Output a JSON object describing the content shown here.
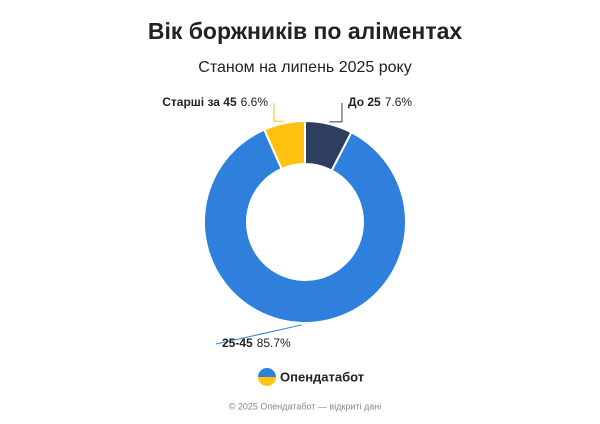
{
  "chart_data": {
    "type": "donut",
    "title": "Вік боржників по аліментах",
    "subtitle": "Станом на липень 2025 року",
    "categories": [
      "До 25",
      "25-45",
      "Старші за 45"
    ],
    "values": [
      7.6,
      85.7,
      6.6
    ],
    "value_labels": [
      "7.6%",
      "85.7%",
      "6.6%"
    ],
    "colors": [
      "#2d3e5e",
      "#2e80dc",
      "#ffc20e"
    ]
  },
  "brand": "Опендатабот",
  "footer": "© 2025 Опендатабот — відкриті дані"
}
